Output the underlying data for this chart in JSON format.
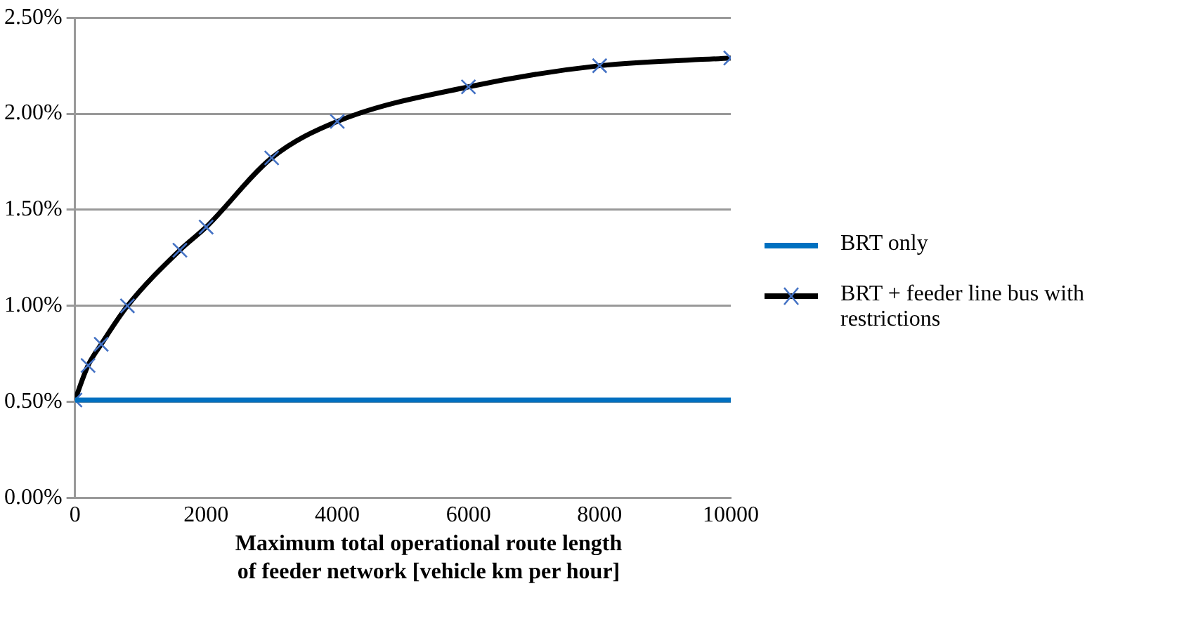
{
  "chart_data": {
    "type": "line",
    "xlabel": "Maximum total operational route length of feeder network [vehicle km per hour]",
    "x": [
      0,
      200,
      400,
      800,
      1600,
      2000,
      3000,
      4000,
      6000,
      8000,
      10000
    ],
    "series": [
      {
        "name": "BRT only",
        "color": "#0070c0",
        "marker": "none",
        "values": [
          0.51,
          0.51,
          0.51,
          0.51,
          0.51,
          0.51,
          0.51,
          0.51,
          0.51,
          0.51,
          0.51
        ]
      },
      {
        "name": "BRT + feeder line bus with restrictions",
        "color": "#000000",
        "marker": "cross",
        "values": [
          0.51,
          0.69,
          0.8,
          1.0,
          1.29,
          1.41,
          1.77,
          1.96,
          2.14,
          2.25,
          2.29
        ]
      }
    ],
    "xlim": [
      0,
      10000
    ],
    "xticks": [
      0,
      2000,
      4000,
      6000,
      8000,
      10000
    ],
    "ylim": [
      0,
      2.5
    ],
    "yticks": [
      {
        "value": 0,
        "label": "0.00%"
      },
      {
        "value": 0.5,
        "label": "0.50%"
      },
      {
        "value": 1,
        "label": "1.00%"
      },
      {
        "value": 1.5,
        "label": "1.50%"
      },
      {
        "value": 2,
        "label": "2.00%"
      },
      {
        "value": 2.5,
        "label": "2.50%"
      }
    ],
    "grid": "y",
    "legend": "right"
  }
}
